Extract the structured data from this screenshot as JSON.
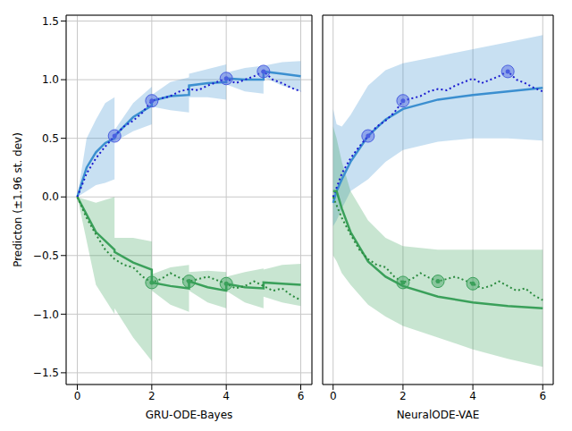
{
  "chart_data": [
    {
      "type": "line",
      "x_label": "GRU-ODE-Bayes",
      "y_label": "Predicton (±1.96 st. dev)",
      "xlim": [
        -0.3,
        6.3
      ],
      "xticks": [
        0,
        2,
        4,
        6
      ],
      "ylim": [
        -1.6,
        1.55
      ],
      "yticks": [
        {
          "value": -1.5,
          "label": "−1.5"
        },
        {
          "value": -1.0,
          "label": "−1.0"
        },
        {
          "value": -0.5,
          "label": "−0.5"
        },
        {
          "value": 0,
          "label": "0.0"
        },
        {
          "value": 0.5,
          "label": "0.5"
        },
        {
          "value": 1.0,
          "label": "1.0"
        },
        {
          "value": 1.5,
          "label": "1.5"
        }
      ],
      "grid": true,
      "series": [
        {
          "type": "line",
          "color": "#3b8fd0",
          "line_style": "solid",
          "x": [
            0,
            0.25,
            0.5,
            0.75,
            1,
            1,
            1.5,
            2,
            2,
            2.5,
            3,
            3,
            3.5,
            4,
            4,
            4.5,
            5,
            5,
            5.5,
            6
          ],
          "values": [
            0,
            0.25,
            0.38,
            0.46,
            0.5,
            0.52,
            0.68,
            0.78,
            0.82,
            0.86,
            0.87,
            0.95,
            0.97,
            0.98,
            1.01,
            1.0,
            1.0,
            1.07,
            1.05,
            1.03
          ],
          "lower": [
            0,
            0.05,
            0.1,
            0.12,
            0.15,
            0.47,
            0.56,
            0.62,
            0.77,
            0.74,
            0.72,
            0.85,
            0.85,
            0.83,
            0.96,
            0.9,
            0.88,
            1.02,
            0.95,
            0.9
          ],
          "upper": [
            0,
            0.5,
            0.66,
            0.8,
            0.85,
            0.57,
            0.8,
            0.94,
            0.87,
            0.98,
            1.02,
            1.05,
            1.09,
            1.13,
            1.06,
            1.1,
            1.12,
            1.12,
            1.15,
            1.16
          ]
        },
        {
          "type": "line",
          "color": "#1a1ad0",
          "line_style": "dotted",
          "x": [
            0,
            0.25,
            0.5,
            0.75,
            1,
            1.25,
            1.5,
            1.75,
            2,
            2.25,
            2.5,
            2.75,
            3,
            3.25,
            3.5,
            3.75,
            4,
            4.25,
            4.5,
            4.75,
            5,
            5.25,
            5.5,
            5.75,
            6
          ],
          "values": [
            0,
            0.2,
            0.33,
            0.43,
            0.52,
            0.6,
            0.65,
            0.72,
            0.82,
            0.84,
            0.86,
            0.9,
            0.92,
            0.91,
            0.95,
            0.98,
            1.01,
            0.97,
            1.0,
            1.03,
            1.07,
            1.0,
            0.97,
            0.93,
            0.9
          ]
        },
        {
          "type": "line",
          "color": "#3aa05a",
          "line_style": "solid",
          "x": [
            0,
            0.5,
            1,
            1,
            1.5,
            2,
            2,
            2.5,
            3,
            3,
            3.5,
            4,
            4,
            4.5,
            5,
            5,
            5.5,
            6
          ],
          "values": [
            0,
            -0.3,
            -0.45,
            -0.47,
            -0.56,
            -0.62,
            -0.73,
            -0.76,
            -0.78,
            -0.72,
            -0.77,
            -0.8,
            -0.74,
            -0.77,
            -0.78,
            -0.73,
            -0.74,
            -0.75
          ],
          "lower": [
            0,
            -0.75,
            -1.0,
            -0.95,
            -1.2,
            -1.4,
            -0.8,
            -0.92,
            -0.98,
            -0.8,
            -0.9,
            -0.95,
            -0.8,
            -0.9,
            -0.95,
            -0.85,
            -0.9,
            -0.93
          ],
          "upper": [
            0,
            -0.05,
            0.0,
            -0.35,
            -0.35,
            -0.38,
            -0.66,
            -0.6,
            -0.58,
            -0.64,
            -0.63,
            -0.64,
            -0.68,
            -0.64,
            -0.61,
            -0.62,
            -0.58,
            -0.57
          ]
        },
        {
          "type": "line",
          "color": "#2a8a3e",
          "line_style": "dotted",
          "x": [
            0,
            0.25,
            0.5,
            0.75,
            1,
            1.25,
            1.5,
            1.75,
            2,
            2.25,
            2.5,
            2.75,
            3,
            3.25,
            3.5,
            3.75,
            4,
            4.25,
            4.5,
            4.75,
            5,
            5.25,
            5.5,
            5.75,
            6
          ],
          "values": [
            0,
            -0.18,
            -0.32,
            -0.45,
            -0.53,
            -0.58,
            -0.6,
            -0.68,
            -0.73,
            -0.7,
            -0.65,
            -0.69,
            -0.72,
            -0.7,
            -0.68,
            -0.71,
            -0.74,
            -0.78,
            -0.76,
            -0.72,
            -0.76,
            -0.8,
            -0.78,
            -0.84,
            -0.88
          ]
        },
        {
          "type": "scatter",
          "color": "#4a5fe0",
          "marker": "o",
          "x": [
            1,
            2,
            4,
            5
          ],
          "values": [
            0.52,
            0.82,
            1.01,
            1.07
          ]
        },
        {
          "type": "scatter",
          "color": "#3aa05a",
          "marker": "o",
          "x": [
            2,
            3,
            4
          ],
          "values": [
            -0.73,
            -0.72,
            -0.74
          ]
        }
      ]
    },
    {
      "type": "line",
      "x_label": "NeuralODE-VAE",
      "tick_labels": "x",
      "xlim": [
        -0.3,
        6.3
      ],
      "xticks": [
        0,
        2,
        4,
        6
      ],
      "ylim": [
        -1.6,
        1.55
      ],
      "yticks": [
        {
          "value": -1.5,
          "label": "−1.5"
        },
        {
          "value": -1.0,
          "label": "−1.0"
        },
        {
          "value": -0.5,
          "label": "−0.5"
        },
        {
          "value": 0,
          "label": "0.0"
        },
        {
          "value": 0.5,
          "label": "0.5"
        },
        {
          "value": 1.0,
          "label": "1.0"
        },
        {
          "value": 1.5,
          "label": "1.5"
        }
      ],
      "grid": true,
      "series": [
        {
          "type": "line",
          "color": "#3b8fd0",
          "line_style": "solid",
          "x": [
            0,
            0.1,
            0.25,
            0.5,
            1,
            1.5,
            2,
            3,
            4,
            5,
            6
          ],
          "values": [
            -0.05,
            0.05,
            0.15,
            0.3,
            0.52,
            0.66,
            0.75,
            0.83,
            0.87,
            0.9,
            0.93
          ],
          "lower": [
            -0.25,
            -0.2,
            -0.1,
            0.05,
            0.15,
            0.3,
            0.4,
            0.47,
            0.5,
            0.5,
            0.48
          ],
          "upper": [
            0.75,
            0.62,
            0.6,
            0.7,
            0.95,
            1.08,
            1.14,
            1.2,
            1.26,
            1.32,
            1.38
          ]
        },
        {
          "type": "line",
          "color": "#1a1ad0",
          "line_style": "dotted",
          "x": [
            0,
            0.25,
            0.5,
            0.75,
            1,
            1.25,
            1.5,
            1.75,
            2,
            2.25,
            2.5,
            2.75,
            3,
            3.25,
            3.5,
            3.75,
            4,
            4.25,
            4.5,
            4.75,
            5,
            5.25,
            5.5,
            5.75,
            6
          ],
          "values": [
            0,
            0.2,
            0.33,
            0.43,
            0.52,
            0.6,
            0.65,
            0.72,
            0.82,
            0.84,
            0.86,
            0.9,
            0.92,
            0.91,
            0.95,
            0.98,
            1.01,
            0.97,
            1.0,
            1.03,
            1.07,
            1.0,
            0.97,
            0.93,
            0.9
          ]
        },
        {
          "type": "line",
          "color": "#3aa05a",
          "line_style": "solid",
          "x": [
            0,
            0.1,
            0.25,
            0.5,
            1,
            1.5,
            2,
            3,
            4,
            5,
            6
          ],
          "values": [
            0.05,
            0.05,
            -0.1,
            -0.3,
            -0.55,
            -0.68,
            -0.76,
            -0.85,
            -0.9,
            -0.93,
            -0.95
          ],
          "lower": [
            -0.5,
            -0.55,
            -0.65,
            -0.75,
            -0.92,
            -1.02,
            -1.1,
            -1.2,
            -1.3,
            -1.38,
            -1.45
          ],
          "upper": [
            0.6,
            0.5,
            0.3,
            0.05,
            -0.2,
            -0.35,
            -0.42,
            -0.45,
            -0.45,
            -0.45,
            -0.45
          ]
        },
        {
          "type": "line",
          "color": "#2a8a3e",
          "line_style": "dotted",
          "x": [
            0,
            0.25,
            0.5,
            0.75,
            1,
            1.25,
            1.5,
            1.75,
            2,
            2.25,
            2.5,
            2.75,
            3,
            3.25,
            3.5,
            3.75,
            4,
            4.25,
            4.5,
            4.75,
            5,
            5.25,
            5.5,
            5.75,
            6
          ],
          "values": [
            0,
            -0.18,
            -0.32,
            -0.45,
            -0.53,
            -0.58,
            -0.6,
            -0.68,
            -0.73,
            -0.7,
            -0.65,
            -0.69,
            -0.72,
            -0.7,
            -0.68,
            -0.71,
            -0.74,
            -0.78,
            -0.76,
            -0.72,
            -0.76,
            -0.8,
            -0.78,
            -0.84,
            -0.88
          ]
        },
        {
          "type": "scatter",
          "color": "#4a5fe0",
          "marker": "o",
          "x": [
            1,
            2,
            5
          ],
          "values": [
            0.52,
            0.82,
            1.07
          ]
        },
        {
          "type": "scatter",
          "color": "#3aa05a",
          "marker": "o",
          "x": [
            2,
            3,
            4
          ],
          "values": [
            -0.73,
            -0.72,
            -0.74
          ]
        }
      ]
    }
  ]
}
